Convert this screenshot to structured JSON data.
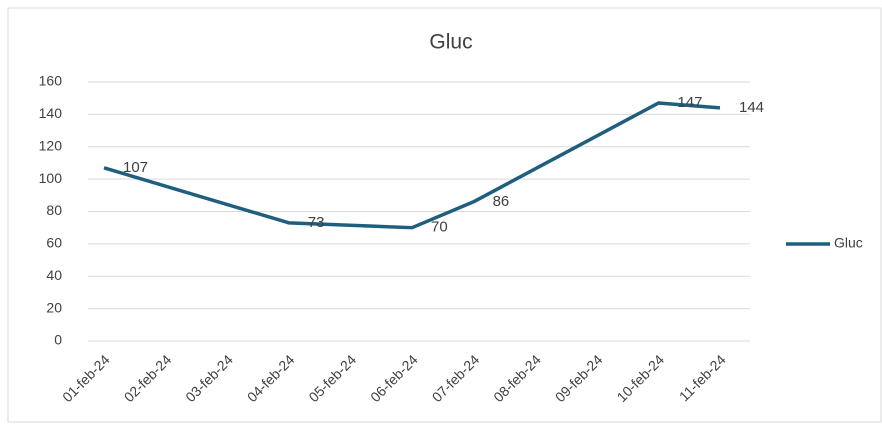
{
  "chart_data": {
    "type": "line",
    "title": "Gluc",
    "categories": [
      "01-feb-24",
      "02-feb-24",
      "03-feb-24",
      "04-feb-24",
      "05-feb-24",
      "06-feb-24",
      "07-feb-24",
      "08-feb-24",
      "09-feb-24",
      "10-feb-24",
      "11-feb-24"
    ],
    "series": [
      {
        "name": "Gluc",
        "color": "#1f5f7e",
        "x": [
          "01-feb-24",
          "04-feb-24",
          "06-feb-24",
          "07-feb-24",
          "10-feb-24",
          "11-feb-24"
        ],
        "values": [
          107,
          73,
          70,
          86,
          147,
          144
        ]
      }
    ],
    "ylim": [
      0,
      160
    ],
    "yticks": [
      0,
      20,
      40,
      60,
      80,
      100,
      120,
      140,
      160
    ],
    "grid": true,
    "legend": "right"
  }
}
